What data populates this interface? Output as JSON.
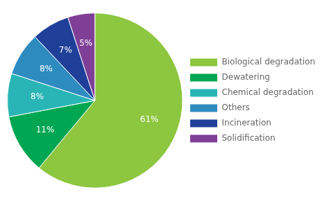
{
  "chart_data": {
    "type": "pie",
    "categories": [
      "Biological degradation",
      "Dewatering",
      "Chemical degradation",
      "Others",
      "Incineration",
      "Solidification"
    ],
    "values": [
      61,
      11,
      8,
      8,
      7,
      5
    ],
    "value_labels": [
      "61%",
      "11%",
      "8%",
      "8%",
      "7%",
      "5%"
    ],
    "colors": [
      "#8dc63f",
      "#00a651",
      "#29b5b5",
      "#2e8bc0",
      "#1f3f99",
      "#7f3f97"
    ],
    "data_labels": true,
    "legend": "right"
  }
}
